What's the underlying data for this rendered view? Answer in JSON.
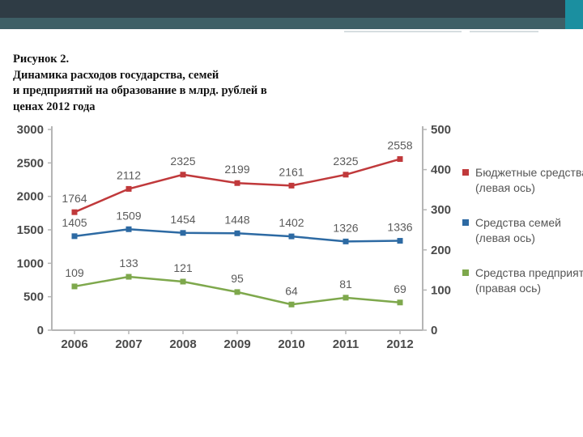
{
  "caption": {
    "lines": [
      "Рисунок 2.",
      "Динамика расходов государства, семей",
      "и предприятий на образование в млрд. рублей в",
      "ценах 2012 года"
    ]
  },
  "colors": {
    "header_dark": "#2f3c45",
    "header_strip": "#3e5f66",
    "accent": "#1b8fa0"
  },
  "chart_data": {
    "type": "line",
    "categories": [
      "2006",
      "2007",
      "2008",
      "2009",
      "2010",
      "2011",
      "2012"
    ],
    "left_axis": {
      "ylim": [
        0,
        3000
      ],
      "ticks": [
        "0",
        "500",
        "1000",
        "1500",
        "2000",
        "2500",
        "3000"
      ]
    },
    "right_axis": {
      "ylim": [
        0,
        500
      ],
      "ticks": [
        "0",
        "100",
        "200",
        "300",
        "400",
        "500"
      ]
    },
    "series": [
      {
        "name": "Бюджетные средства (левая ось)",
        "legend_lines": [
          "Бюджетные средства",
          "(левая ось)"
        ],
        "axis": "left",
        "color": "#c0393b",
        "values": [
          1764,
          2112,
          2325,
          2199,
          2161,
          2325,
          2558
        ],
        "labels": [
          "1764",
          "2112",
          "2325",
          "2199",
          "2161",
          "2325",
          "2558"
        ]
      },
      {
        "name": "Средства семей (левая ось)",
        "legend_lines": [
          "Средства семей",
          "(левая ось)"
        ],
        "axis": "left",
        "color": "#2d6aa3",
        "values": [
          1405,
          1509,
          1454,
          1448,
          1402,
          1326,
          1336
        ],
        "labels": [
          "1405",
          "1509",
          "1454",
          "1448",
          "1402",
          "1326",
          "1336"
        ]
      },
      {
        "name": "Средства предприятий (правая ось)",
        "legend_lines": [
          "Средства предприятий",
          "(правая ось)"
        ],
        "axis": "right",
        "color": "#7ea84c",
        "values": [
          109,
          133,
          121,
          95,
          64,
          81,
          69
        ],
        "labels": [
          "109",
          "133",
          "121",
          "95",
          "64",
          "81",
          "69"
        ]
      }
    ],
    "legend_position": "right",
    "grid": false
  }
}
